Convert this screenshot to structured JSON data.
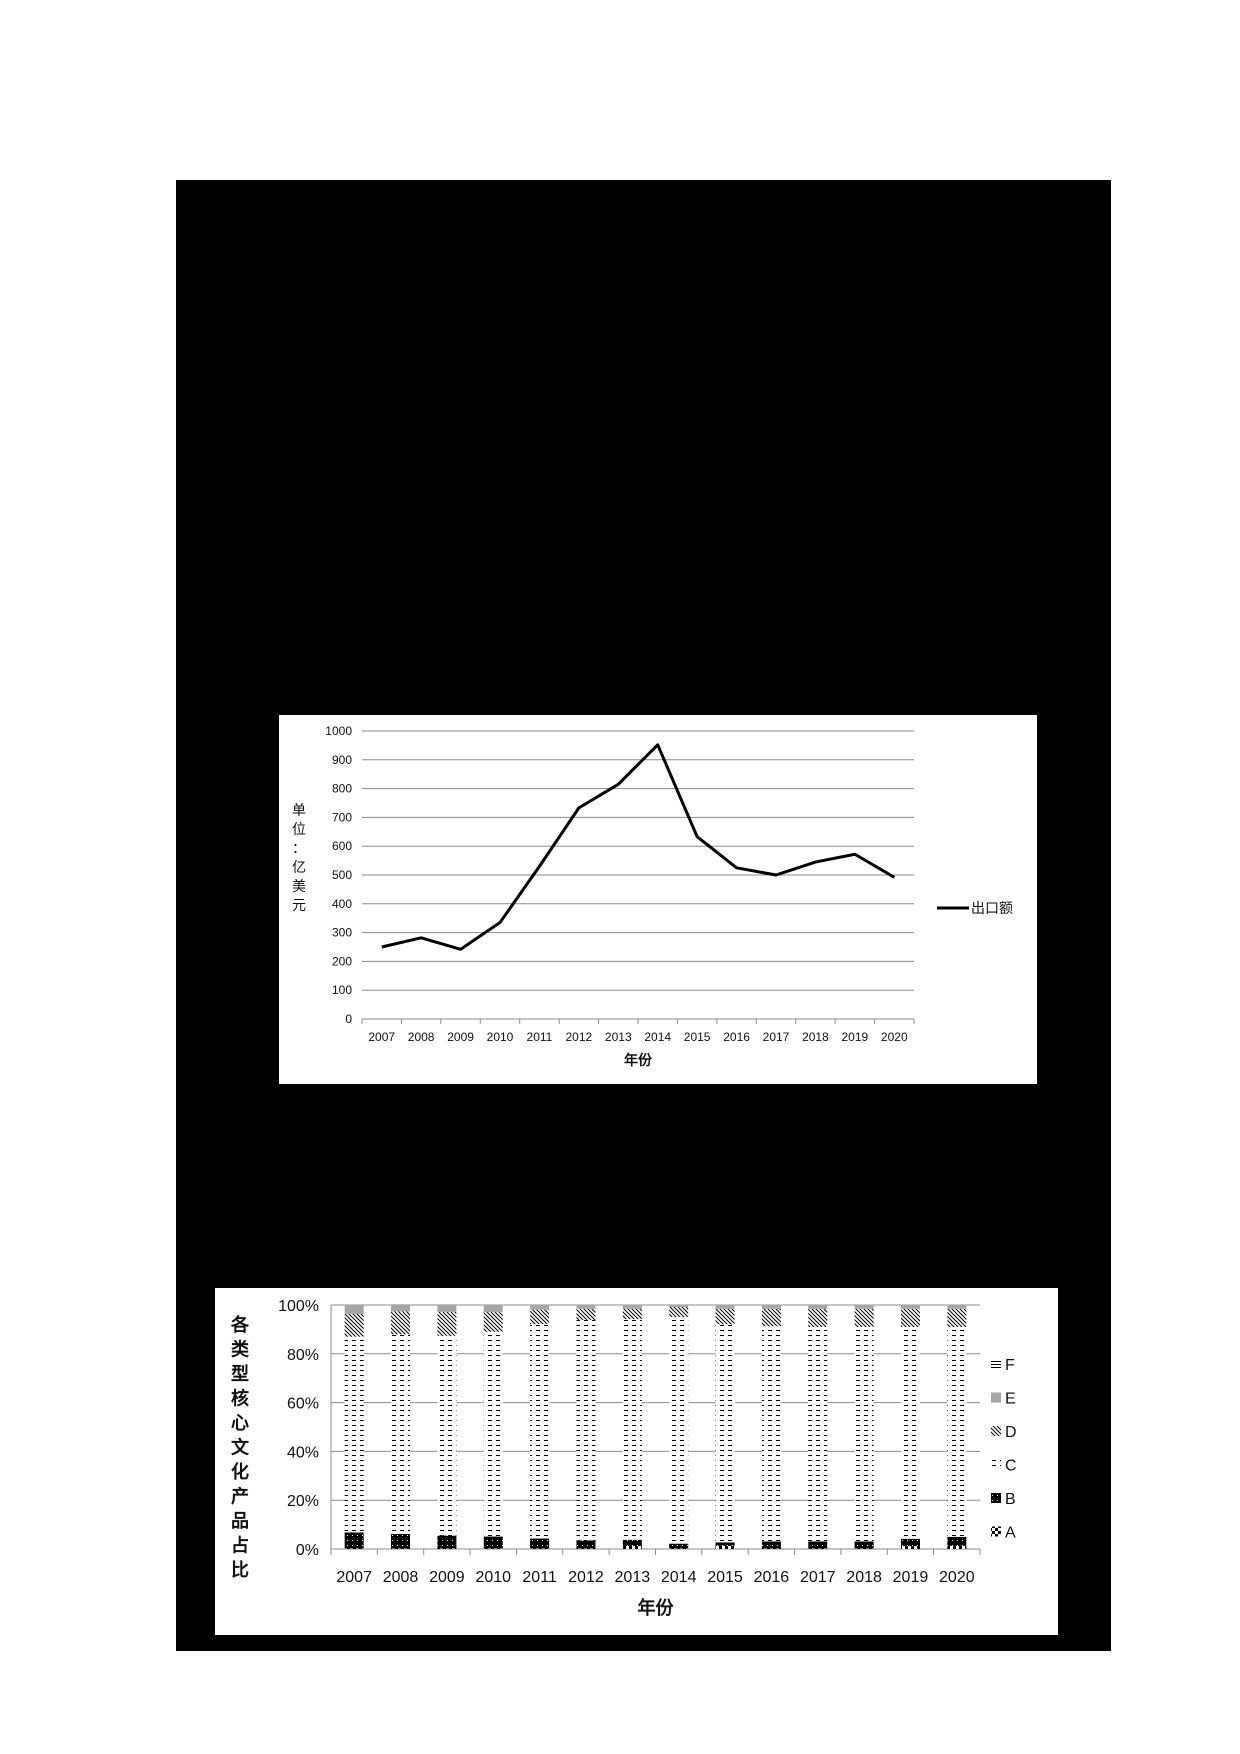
{
  "page": {
    "background": "#ffffff",
    "panel_color": "#000000"
  },
  "chart_data": [
    {
      "type": "line",
      "title": "",
      "xlabel": "年份",
      "ylabel": "单位：亿美元",
      "ylim": [
        0,
        1000
      ],
      "yticks": [
        0,
        100,
        200,
        300,
        400,
        500,
        600,
        700,
        800,
        900,
        1000
      ],
      "grid": true,
      "legend_position": "right",
      "categories": [
        "2007",
        "2008",
        "2009",
        "2010",
        "2011",
        "2012",
        "2013",
        "2014",
        "2015",
        "2016",
        "2017",
        "2018",
        "2019",
        "2020"
      ],
      "series": [
        {
          "name": "出口额",
          "color": "#000000",
          "values": [
            250,
            282,
            242,
            335,
            530,
            733,
            815,
            952,
            633,
            525,
            500,
            545,
            572,
            492
          ]
        }
      ]
    },
    {
      "type": "bar",
      "stacked": "percent",
      "title": "",
      "xlabel": "年份",
      "ylabel": "各类型核心文化产品占比",
      "ylim": [
        0,
        100
      ],
      "yticks": [
        "0%",
        "20%",
        "40%",
        "60%",
        "80%",
        "100%"
      ],
      "grid": true,
      "legend_position": "right",
      "categories": [
        "2007",
        "2008",
        "2009",
        "2010",
        "2011",
        "2012",
        "2013",
        "2014",
        "2015",
        "2016",
        "2017",
        "2018",
        "2019",
        "2020"
      ],
      "series": [
        {
          "name": "A",
          "pattern": "diamond",
          "values": [
            0.2,
            0.2,
            0.2,
            0.2,
            0.2,
            0.2,
            1.2,
            0.2,
            1.3,
            0.2,
            0.2,
            0.2,
            1.2,
            1.3
          ]
        },
        {
          "name": "B",
          "pattern": "dotted-black",
          "values": [
            6.6,
            6.0,
            5.3,
            4.9,
            4.1,
            3.3,
            2.6,
            2.0,
            1.4,
            2.9,
            2.9,
            2.9,
            3.0,
            3.7
          ]
        },
        {
          "name": "C",
          "pattern": "dashes",
          "values": [
            80.2,
            81.8,
            81.9,
            83.9,
            87.9,
            90.4,
            90.4,
            92.9,
            89.4,
            88.2,
            87.9,
            87.9,
            86.8,
            86.0
          ]
        },
        {
          "name": "D",
          "pattern": "diagonal",
          "values": [
            9.3,
            9.4,
            9.8,
            8.1,
            5.9,
            4.6,
            4.3,
            4.1,
            6.3,
            7.1,
            7.4,
            7.4,
            7.4,
            7.4
          ]
        },
        {
          "name": "E",
          "pattern": "gray",
          "color": "#a6a6a6",
          "values": [
            3.7,
            2.6,
            2.8,
            2.9,
            1.9,
            1.5,
            1.5,
            0.8,
            1.6,
            1.6,
            1.6,
            1.6,
            1.6,
            1.6
          ]
        },
        {
          "name": "F",
          "pattern": "horizontal-lines",
          "values": [
            0,
            0,
            0,
            0,
            0,
            0,
            0,
            0,
            0,
            0,
            0,
            0,
            0,
            0
          ]
        }
      ],
      "legend_order": [
        "F",
        "E",
        "D",
        "C",
        "B",
        "A"
      ]
    }
  ]
}
